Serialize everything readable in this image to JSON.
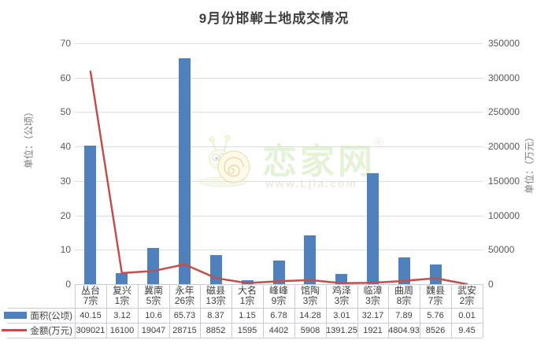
{
  "title": "9月份邯郸土地成交情况",
  "watermark": {
    "brand": "恋家网",
    "registered": "®",
    "url": "www.Ljia.com"
  },
  "chart_data": {
    "type": "bar+line",
    "title": "9月份邯郸土地成交情况",
    "categories": [
      "丛台",
      "复兴",
      "冀南",
      "永年",
      "磁县",
      "大名",
      "峰峰",
      "馆陶",
      "鸡泽",
      "临漳",
      "曲周",
      "魏县",
      "武安"
    ],
    "category_counts": [
      "7宗",
      "1宗",
      "5宗",
      "26宗",
      "13宗",
      "1宗",
      "9宗",
      "3宗",
      "3宗",
      "3宗",
      "8宗",
      "7宗",
      "2宗"
    ],
    "series": [
      {
        "name": "面积(公顷)",
        "chart": "bar",
        "axis": "left",
        "color": "#4f81bd",
        "values": [
          40.15,
          3.12,
          10.6,
          65.73,
          8.37,
          1.15,
          6.78,
          14.28,
          3.01,
          32.17,
          7.89,
          5.76,
          0.01
        ]
      },
      {
        "name": "金额(万元)",
        "chart": "line",
        "axis": "right",
        "color": "#c0504d",
        "values": [
          309021,
          16100,
          19047,
          28715,
          8852,
          1595,
          4402,
          5908,
          1391.25,
          1921,
          4804.93,
          8526,
          9.45
        ]
      }
    ],
    "left_axis": {
      "title": "单位：（公顷）",
      "min": 0,
      "max": 70,
      "step": 10
    },
    "right_axis": {
      "title": "单位：（万元）",
      "min": 0,
      "max": 350000,
      "step": 50000
    },
    "grid": true,
    "legend_position": "data-table-left",
    "data_table": true
  }
}
